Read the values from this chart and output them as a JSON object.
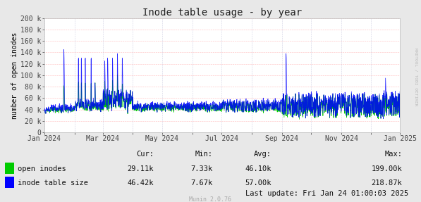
{
  "title": "Inode table usage - by year",
  "ylabel": "number of open inodes",
  "background_color": "#e8e8e8",
  "plot_bg_color": "#ffffff",
  "grid_color_h": "#ff8080",
  "grid_color_v": "#aaaacc",
  "xmin": 0,
  "xmax": 365,
  "ymin": 0,
  "ymax": 200000,
  "yticks": [
    0,
    20000,
    40000,
    60000,
    80000,
    100000,
    120000,
    140000,
    160000,
    180000,
    200000
  ],
  "ytick_labels": [
    "0",
    "20 k",
    "40 k",
    "60 k",
    "80 k",
    "100 k",
    "120 k",
    "140 k",
    "160 k",
    "180 k",
    "200 k"
  ],
  "xtick_positions": [
    0,
    31,
    60,
    91,
    121,
    152,
    182,
    213,
    244,
    274,
    305,
    335,
    365
  ],
  "xtick_labels": [
    "Jan 2024",
    "",
    "Mar 2024",
    "",
    "May 2024",
    "",
    "Jul 2024",
    "",
    "Sep 2024",
    "",
    "Nov 2024",
    "",
    "Jan 2025"
  ],
  "open_inodes_color": "#00cc00",
  "inode_table_color": "#0000ff",
  "legend_open_inodes": "open inodes",
  "legend_inode_table": "inode table size",
  "cur_open": "29.11k",
  "min_open": "7.33k",
  "avg_open": "46.10k",
  "max_open": "199.00k",
  "cur_inode": "46.42k",
  "min_inode": "7.67k",
  "avg_inode": "57.00k",
  "max_inode": "218.87k",
  "last_update": "Last update: Fri Jan 24 01:00:03 2025",
  "munin_version": "Munin 2.0.76",
  "watermark": "RRDTOOL / TOBI OETIKER",
  "title_fontsize": 10,
  "axis_fontsize": 7,
  "stats_fontsize": 7.5
}
